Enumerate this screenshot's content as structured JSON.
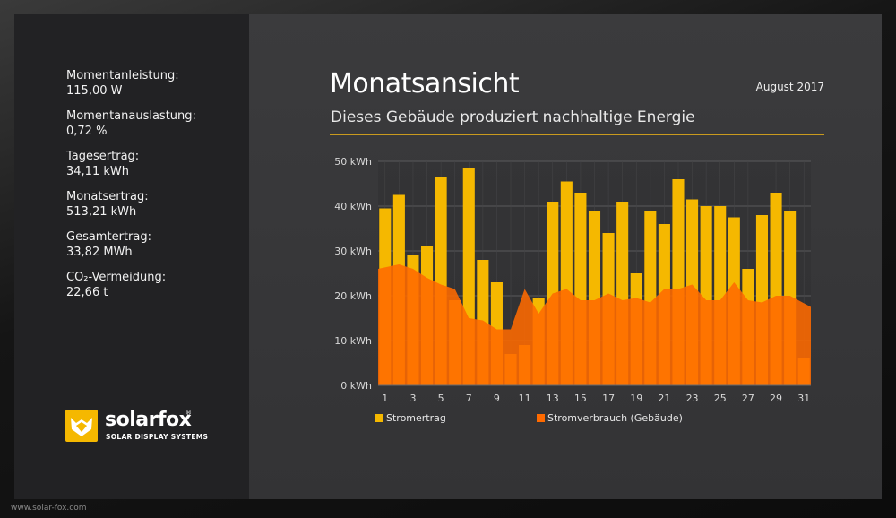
{
  "sidebar": {
    "stats": [
      {
        "label": "Momentanleistung:",
        "value": "115,00 W"
      },
      {
        "label": "Momentanauslastung:",
        "value": "0,72 %"
      },
      {
        "label": "Tagesertrag:",
        "value": "34,11 kWh"
      },
      {
        "label": "Monatsertrag:",
        "value": "513,21 kWh"
      },
      {
        "label": "Gesamtertrag:",
        "value": "33,82 MWh"
      },
      {
        "label": "CO₂-Vermeidung:",
        "value": "22,66 t"
      }
    ]
  },
  "logo": {
    "name_a": "solar",
    "name_b": "fox",
    "registered": "®",
    "tagline": "SOLAR DISPLAY SYSTEMS",
    "icon": "fox-logo-icon"
  },
  "header": {
    "title": "Monatsansicht",
    "date": "August 2017",
    "subtitle": "Dieses Gebäude produziert nachhaltige Energie"
  },
  "footer": {
    "url": "www.solar-fox.com"
  },
  "colors": {
    "accent": "#f5b800",
    "consumption": "#ff6a00",
    "rule": "#c99a1e"
  },
  "chart_data": {
    "type": "bar",
    "x_ticks": [
      1,
      3,
      5,
      7,
      9,
      11,
      13,
      15,
      17,
      19,
      21,
      23,
      25,
      27,
      29,
      31
    ],
    "y_tick_labels": [
      "0 kWh",
      "10 kWh",
      "20 kWh",
      "30 kWh",
      "40 kWh",
      "50 kWh"
    ],
    "ylim": [
      0,
      50
    ],
    "grid": true,
    "legend_position": "bottom",
    "categories": [
      1,
      2,
      3,
      4,
      5,
      6,
      7,
      8,
      9,
      10,
      11,
      12,
      13,
      14,
      15,
      16,
      17,
      18,
      19,
      20,
      21,
      22,
      23,
      24,
      25,
      26,
      27,
      28,
      29,
      30,
      31
    ],
    "series": [
      {
        "name": "Stromertrag",
        "type": "bar",
        "color": "#f5b800",
        "values": [
          39.5,
          42.5,
          29,
          31,
          46.5,
          19,
          48.5,
          28,
          23,
          7,
          9,
          19.5,
          41,
          45.5,
          43,
          39,
          34,
          41,
          25,
          39,
          36,
          46,
          41.5,
          40,
          40,
          37.5,
          26,
          38,
          43,
          39,
          6
        ]
      },
      {
        "name": "Stromverbrauch (Gebäude)",
        "type": "area",
        "color": "#ff6a00",
        "values": [
          26,
          27,
          26,
          24,
          22.5,
          21.5,
          15,
          14.5,
          12.5,
          12.5,
          21.5,
          16,
          20.5,
          21.5,
          19,
          19,
          20.5,
          19,
          19.5,
          18.5,
          21.5,
          21.5,
          22.5,
          19,
          19,
          23,
          19,
          18.5,
          20,
          20,
          17.5
        ]
      }
    ]
  }
}
